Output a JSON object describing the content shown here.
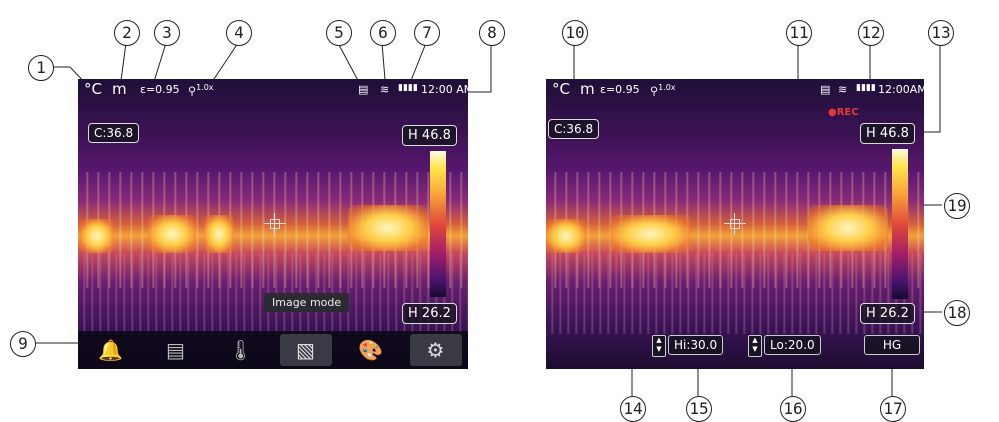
{
  "left": {
    "status": {
      "unit": "°C",
      "mode": "m",
      "emissivity": "ε=0.95",
      "zoom": "1.0x",
      "time": "12:00 AM"
    },
    "center_temp": "C:36.8",
    "scale_high_marker": "H",
    "scale_high": "46.8",
    "scale_low_marker": "H",
    "scale_low": "26.2",
    "tooltip": "Image mode"
  },
  "right": {
    "status": {
      "unit": "°C",
      "mode": "m",
      "emissivity": "ε=0.95",
      "zoom": "1.0x",
      "time": "12:00AM"
    },
    "rec": "●REC",
    "center_temp": "C:36.8",
    "scale_high_marker": "H",
    "scale_high": "46.8",
    "scale_low_marker": "H",
    "scale_low": "26.2",
    "hi": "Hi:30.0",
    "lo": "Lo:20.0",
    "hg": "HG"
  },
  "callouts": [
    "1",
    "2",
    "3",
    "4",
    "5",
    "6",
    "7",
    "8",
    "9",
    "10",
    "11",
    "12",
    "13",
    "14",
    "15",
    "16",
    "17",
    "18",
    "19"
  ],
  "icons": {
    "menu": [
      "alarm-bell-icon",
      "monitor-icon",
      "thermometer-icon",
      "image-icon",
      "palette-icon",
      "settings-gear-icon"
    ]
  }
}
